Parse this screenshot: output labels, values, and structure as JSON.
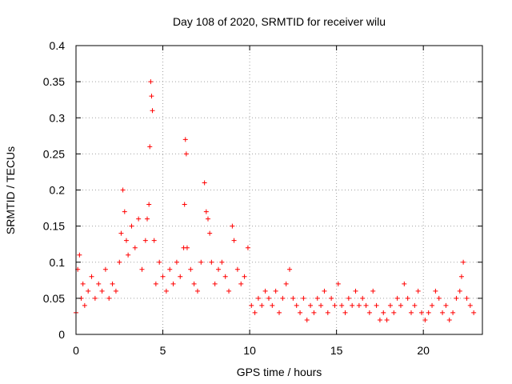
{
  "chart_data": {
    "type": "scatter",
    "title": "Day 108 of 2020, SRMTID for receiver wilu",
    "xlabel": "GPS time / hours",
    "ylabel": "SRMTID / TECUs",
    "xlim": [
      0,
      23.4
    ],
    "ylim": [
      0,
      0.4
    ],
    "xticks": [
      0,
      5,
      10,
      15,
      20
    ],
    "yticks": [
      0,
      0.05,
      0.1,
      0.15,
      0.2,
      0.25,
      0.3,
      0.35,
      0.4
    ],
    "xtick_labels": [
      "0",
      "5",
      "10",
      "15",
      "20"
    ],
    "ytick_labels": [
      "0",
      "0.05",
      "0.1",
      "0.15",
      "0.2",
      "0.25",
      "0.3",
      "0.35",
      "0.4"
    ],
    "grid": true,
    "marker": "+",
    "color": "#ff0000",
    "series": [
      {
        "name": "SRMTID",
        "x": [
          0.0,
          0.1,
          0.2,
          0.3,
          0.4,
          0.5,
          0.7,
          0.9,
          1.1,
          1.3,
          1.5,
          1.7,
          1.9,
          2.1,
          2.3,
          2.5,
          2.6,
          2.7,
          2.8,
          2.9,
          3.0,
          3.2,
          3.4,
          3.6,
          3.8,
          4.0,
          4.1,
          4.2,
          4.25,
          4.3,
          4.35,
          4.4,
          4.5,
          4.6,
          4.8,
          5.0,
          5.2,
          5.4,
          5.6,
          5.8,
          6.0,
          6.2,
          6.25,
          6.3,
          6.35,
          6.4,
          6.6,
          6.8,
          7.0,
          7.2,
          7.4,
          7.5,
          7.6,
          7.7,
          7.8,
          8.0,
          8.2,
          8.4,
          8.6,
          8.8,
          9.0,
          9.1,
          9.3,
          9.5,
          9.7,
          9.9,
          10.1,
          10.3,
          10.5,
          10.7,
          10.9,
          11.1,
          11.3,
          11.5,
          11.7,
          11.9,
          12.1,
          12.3,
          12.5,
          12.7,
          12.9,
          13.1,
          13.3,
          13.5,
          13.7,
          13.9,
          14.1,
          14.3,
          14.5,
          14.7,
          14.9,
          15.1,
          15.3,
          15.5,
          15.7,
          15.9,
          16.1,
          16.3,
          16.5,
          16.7,
          16.9,
          17.1,
          17.3,
          17.5,
          17.7,
          17.9,
          18.1,
          18.3,
          18.5,
          18.7,
          18.9,
          19.1,
          19.3,
          19.5,
          19.7,
          19.9,
          20.1,
          20.3,
          20.5,
          20.7,
          20.9,
          21.1,
          21.3,
          21.5,
          21.7,
          21.9,
          22.1,
          22.2,
          22.3,
          22.5,
          22.7,
          22.9
        ],
        "y": [
          0.03,
          0.09,
          0.11,
          0.05,
          0.07,
          0.04,
          0.06,
          0.08,
          0.05,
          0.07,
          0.06,
          0.09,
          0.05,
          0.07,
          0.06,
          0.1,
          0.14,
          0.2,
          0.17,
          0.13,
          0.11,
          0.15,
          0.12,
          0.16,
          0.09,
          0.13,
          0.16,
          0.18,
          0.26,
          0.35,
          0.33,
          0.31,
          0.13,
          0.07,
          0.1,
          0.08,
          0.06,
          0.09,
          0.07,
          0.1,
          0.08,
          0.12,
          0.18,
          0.27,
          0.25,
          0.12,
          0.09,
          0.07,
          0.06,
          0.1,
          0.21,
          0.17,
          0.16,
          0.14,
          0.1,
          0.07,
          0.09,
          0.1,
          0.08,
          0.06,
          0.15,
          0.13,
          0.09,
          0.07,
          0.08,
          0.12,
          0.04,
          0.03,
          0.05,
          0.04,
          0.06,
          0.05,
          0.04,
          0.06,
          0.03,
          0.05,
          0.07,
          0.09,
          0.05,
          0.04,
          0.03,
          0.05,
          0.02,
          0.04,
          0.03,
          0.05,
          0.04,
          0.06,
          0.03,
          0.05,
          0.04,
          0.07,
          0.04,
          0.03,
          0.05,
          0.04,
          0.06,
          0.04,
          0.05,
          0.04,
          0.03,
          0.06,
          0.04,
          0.02,
          0.03,
          0.02,
          0.04,
          0.03,
          0.05,
          0.04,
          0.07,
          0.05,
          0.03,
          0.04,
          0.06,
          0.03,
          0.02,
          0.03,
          0.04,
          0.06,
          0.05,
          0.03,
          0.04,
          0.02,
          0.03,
          0.05,
          0.06,
          0.08,
          0.1,
          0.05,
          0.04,
          0.03
        ]
      }
    ]
  }
}
